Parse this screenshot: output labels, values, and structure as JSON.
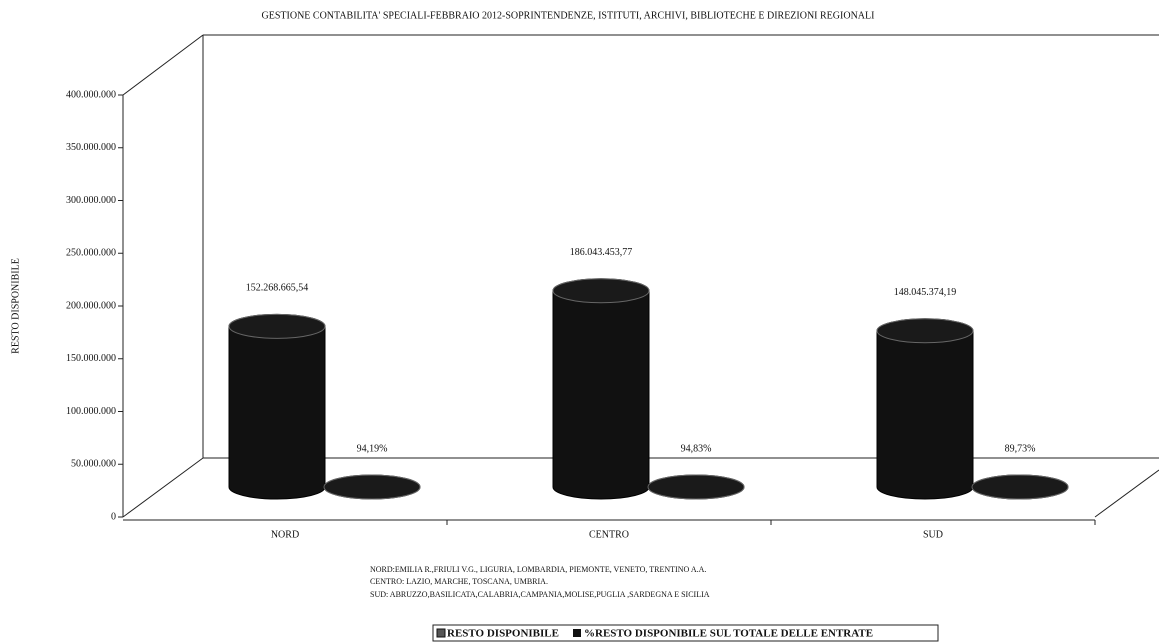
{
  "chart_data": {
    "type": "bar3d",
    "title": "GESTIONE CONTABILITA' SPECIALI-FEBBRAIO 2012-SOPRINTENDENZE, ISTITUTI, ARCHIVI, BIBLIOTECHE E DIREZIONI REGIONALI",
    "y_label": "RESTO DISPONIBILE",
    "categories": [
      "NORD",
      "CENTRO",
      "SUD"
    ],
    "series": [
      {
        "name": "RESTO DISPONIBILE",
        "color": "#111111",
        "values": [
          152268665.54,
          186043453.77,
          148045374.19
        ],
        "value_labels": [
          "152.268.665,54",
          "186.043.453,77",
          "148.045.374,19"
        ]
      },
      {
        "name": "%RESTO DISPONIBILE SUL TOTALE DELLE ENTRATE",
        "color": "#111111",
        "values": [
          94.19,
          94.83,
          89.73
        ],
        "value_labels": [
          "94,19%",
          "94,83%",
          "89,73%"
        ]
      }
    ],
    "ylim": [
      0,
      400000000
    ],
    "yticks": [
      0,
      {
        "value": 50000000,
        "label": "50.000.000"
      },
      {
        "value": 100000000,
        "label": "100.000.000"
      },
      {
        "value": 150000000,
        "label": "150.000.000"
      },
      {
        "value": 200000000,
        "label": "200.000.000"
      },
      {
        "value": 250000000,
        "label": "250.000.000"
      },
      {
        "value": 300000000,
        "label": "300.000.000"
      },
      {
        "value": 350000000,
        "label": "350.000.000"
      },
      {
        "value": 400000000,
        "label": "400.000.000"
      }
    ],
    "notes": [
      "NORD:EMILIA R.,FRIULI V.G., LIGURIA, LOMBARDIA, PIEMONTE, VENETO, TRENTINO A.A.",
      "CENTRO: LAZIO, MARCHE, TOSCANA, UMBRIA.",
      "SUD: ABRUZZO,BASILICATA,CALABRIA,CAMPANIA,MOLISE,PUGLIA ,SARDEGNA E SICILIA"
    ]
  }
}
